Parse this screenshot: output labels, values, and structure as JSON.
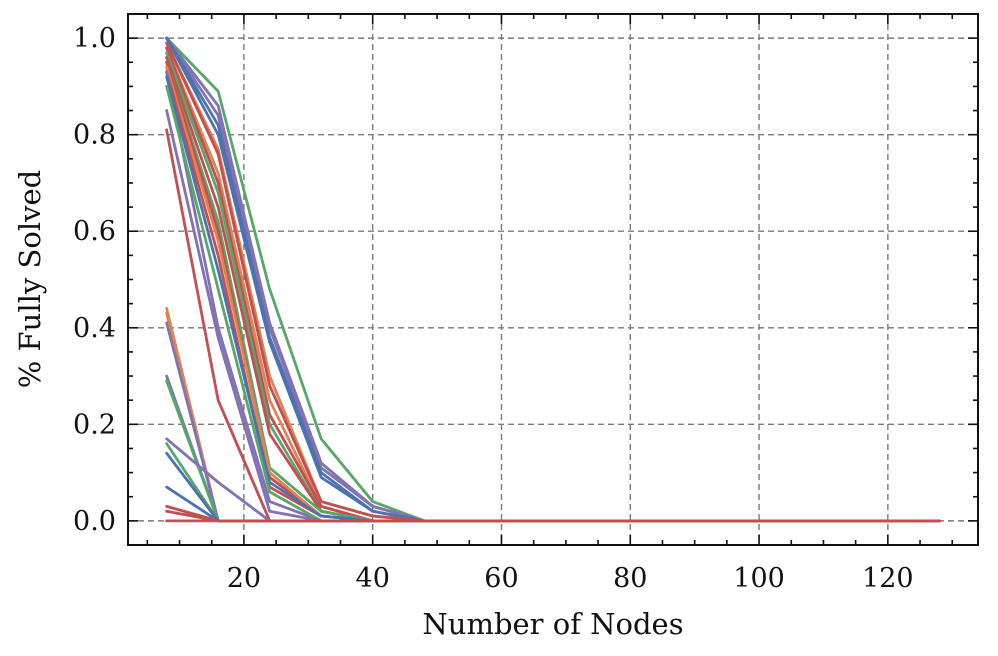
{
  "chart_data": {
    "type": "line",
    "xlabel": "Number of Nodes",
    "ylabel": "% Fully Solved",
    "xlim": [
      2,
      134
    ],
    "ylim": [
      -0.05,
      1.05
    ],
    "x_ticks": [
      20,
      40,
      60,
      80,
      100,
      120
    ],
    "x_tick_labels": [
      "20",
      "40",
      "60",
      "80",
      "100",
      "120"
    ],
    "y_ticks": [
      0.0,
      0.2,
      0.4,
      0.6,
      0.8,
      1.0
    ],
    "y_tick_labels": [
      "0.0",
      "0.2",
      "0.4",
      "0.6",
      "0.8",
      "1.0"
    ],
    "grid": true,
    "legend": "none",
    "x": [
      8,
      16,
      24,
      32,
      40,
      48,
      56,
      64,
      72,
      80,
      88,
      96,
      104,
      112,
      120,
      128
    ],
    "colors": [
      "#4c72b0",
      "#dd8452",
      "#55a868",
      "#c44e52",
      "#8172b3"
    ],
    "series": [
      {
        "color": "#55a868",
        "values": [
          1.0,
          0.89,
          0.48,
          0.17,
          0.04,
          0,
          0,
          0,
          0,
          0,
          0,
          0,
          0,
          0,
          0,
          0
        ]
      },
      {
        "color": "#8172b3",
        "values": [
          1.0,
          0.86,
          0.41,
          0.12,
          0.03,
          0,
          0,
          0,
          0,
          0,
          0,
          0,
          0,
          0,
          0,
          0
        ]
      },
      {
        "color": "#8172b3",
        "values": [
          1.0,
          0.84,
          0.4,
          0.11,
          0.03,
          0,
          0,
          0,
          0,
          0,
          0,
          0,
          0,
          0,
          0,
          0
        ]
      },
      {
        "color": "#4c72b0",
        "values": [
          1.0,
          0.82,
          0.38,
          0.1,
          0.02,
          0,
          0,
          0,
          0,
          0,
          0,
          0,
          0,
          0,
          0,
          0
        ]
      },
      {
        "color": "#4c72b0",
        "values": [
          1.0,
          0.8,
          0.37,
          0.09,
          0.02,
          0,
          0,
          0,
          0,
          0,
          0,
          0,
          0,
          0,
          0,
          0
        ]
      },
      {
        "color": "#dd8452",
        "values": [
          0.99,
          0.77,
          0.3,
          0.04,
          0.01,
          0,
          0,
          0,
          0,
          0,
          0,
          0,
          0,
          0,
          0,
          0
        ]
      },
      {
        "color": "#c44e52",
        "values": [
          0.99,
          0.76,
          0.28,
          0.04,
          0.01,
          0,
          0,
          0,
          0,
          0,
          0,
          0,
          0,
          0,
          0,
          0
        ]
      },
      {
        "color": "#dd8452",
        "values": [
          0.98,
          0.72,
          0.25,
          0.03,
          0.0,
          0,
          0,
          0,
          0,
          0,
          0,
          0,
          0,
          0,
          0,
          0
        ]
      },
      {
        "color": "#c44e52",
        "values": [
          0.98,
          0.7,
          0.22,
          0.03,
          0.0,
          0,
          0,
          0,
          0,
          0,
          0,
          0,
          0,
          0,
          0,
          0
        ]
      },
      {
        "color": "#55a868",
        "values": [
          0.97,
          0.68,
          0.2,
          0.02,
          0.0,
          0,
          0,
          0,
          0,
          0,
          0,
          0,
          0,
          0,
          0,
          0
        ]
      },
      {
        "color": "#c44e52",
        "values": [
          0.96,
          0.65,
          0.18,
          0.02,
          0.0,
          0,
          0,
          0,
          0,
          0,
          0,
          0,
          0,
          0,
          0,
          0
        ]
      },
      {
        "color": "#55a868",
        "values": [
          0.95,
          0.62,
          0.11,
          0.02,
          0.0,
          0,
          0,
          0,
          0,
          0,
          0,
          0,
          0,
          0,
          0,
          0
        ]
      },
      {
        "color": "#c44e52",
        "values": [
          0.95,
          0.6,
          0.09,
          0.01,
          0.0,
          0,
          0,
          0,
          0,
          0,
          0,
          0,
          0,
          0,
          0,
          0
        ]
      },
      {
        "color": "#dd8452",
        "values": [
          0.94,
          0.58,
          0.1,
          0.01,
          0.0,
          0,
          0,
          0,
          0,
          0,
          0,
          0,
          0,
          0,
          0,
          0
        ]
      },
      {
        "color": "#c44e52",
        "values": [
          0.93,
          0.55,
          0.07,
          0.01,
          0.0,
          0,
          0,
          0,
          0,
          0,
          0,
          0,
          0,
          0,
          0,
          0
        ]
      },
      {
        "color": "#8172b3",
        "values": [
          0.93,
          0.4,
          0.04,
          0.0,
          0.0,
          0,
          0,
          0,
          0,
          0,
          0,
          0,
          0,
          0,
          0,
          0
        ]
      },
      {
        "color": "#4c72b0",
        "values": [
          0.92,
          0.52,
          0.08,
          0.01,
          0.0,
          0,
          0,
          0,
          0,
          0,
          0,
          0,
          0,
          0,
          0,
          0
        ]
      },
      {
        "color": "#55a868",
        "values": [
          0.9,
          0.48,
          0.06,
          0.0,
          0.0,
          0,
          0,
          0,
          0,
          0,
          0,
          0,
          0,
          0,
          0,
          0
        ]
      },
      {
        "color": "#8172b3",
        "values": [
          0.85,
          0.38,
          0.02,
          0.0,
          0.0,
          0,
          0,
          0,
          0,
          0,
          0,
          0,
          0,
          0,
          0,
          0
        ]
      },
      {
        "color": "#c44e52",
        "values": [
          0.81,
          0.25,
          0.0,
          0.0,
          0.0,
          0,
          0,
          0,
          0,
          0,
          0,
          0,
          0,
          0,
          0,
          0
        ]
      },
      {
        "color": "#dd8452",
        "values": [
          0.44,
          0.0,
          0.0,
          0.0,
          0.0,
          0,
          0,
          0,
          0,
          0,
          0,
          0,
          0,
          0,
          0,
          0
        ]
      },
      {
        "color": "#dd8452",
        "values": [
          0.43,
          0.0,
          0.0,
          0.0,
          0.0,
          0,
          0,
          0,
          0,
          0,
          0,
          0,
          0,
          0,
          0,
          0
        ]
      },
      {
        "color": "#8172b3",
        "values": [
          0.41,
          0.0,
          0.0,
          0.0,
          0.0,
          0,
          0,
          0,
          0,
          0,
          0,
          0,
          0,
          0,
          0,
          0
        ]
      },
      {
        "color": "#8172b3",
        "values": [
          0.3,
          0.0,
          0.0,
          0.0,
          0.0,
          0,
          0,
          0,
          0,
          0,
          0,
          0,
          0,
          0,
          0,
          0
        ]
      },
      {
        "color": "#55a868",
        "values": [
          0.29,
          0.0,
          0.0,
          0.0,
          0.0,
          0,
          0,
          0,
          0,
          0,
          0,
          0,
          0,
          0,
          0,
          0
        ]
      },
      {
        "color": "#8172b3",
        "values": [
          0.17,
          0.08,
          0.0,
          0.0,
          0.0,
          0,
          0,
          0,
          0,
          0,
          0,
          0,
          0,
          0,
          0,
          0
        ]
      },
      {
        "color": "#55a868",
        "values": [
          0.16,
          0.0,
          0.0,
          0.0,
          0.0,
          0,
          0,
          0,
          0,
          0,
          0,
          0,
          0,
          0,
          0,
          0
        ]
      },
      {
        "color": "#4c72b0",
        "values": [
          0.14,
          0.0,
          0.0,
          0.0,
          0.0,
          0,
          0,
          0,
          0,
          0,
          0,
          0,
          0,
          0,
          0,
          0
        ]
      },
      {
        "color": "#4c72b0",
        "values": [
          0.07,
          0.0,
          0.0,
          0.0,
          0.0,
          0,
          0,
          0,
          0,
          0,
          0,
          0,
          0,
          0,
          0,
          0
        ]
      },
      {
        "color": "#c44e52",
        "values": [
          0.03,
          0.0,
          0.0,
          0.0,
          0.0,
          0,
          0,
          0,
          0,
          0,
          0,
          0,
          0,
          0,
          0,
          0
        ]
      },
      {
        "color": "#c44e52",
        "values": [
          0.02,
          0.0,
          0.0,
          0.0,
          0.0,
          0,
          0,
          0,
          0,
          0,
          0,
          0,
          0,
          0,
          0,
          0
        ]
      },
      {
        "color": "#c44e52",
        "values": [
          0.0,
          0.0,
          0.0,
          0.0,
          0.0,
          0,
          0,
          0,
          0,
          0,
          0,
          0,
          0,
          0,
          0,
          0
        ]
      }
    ]
  }
}
